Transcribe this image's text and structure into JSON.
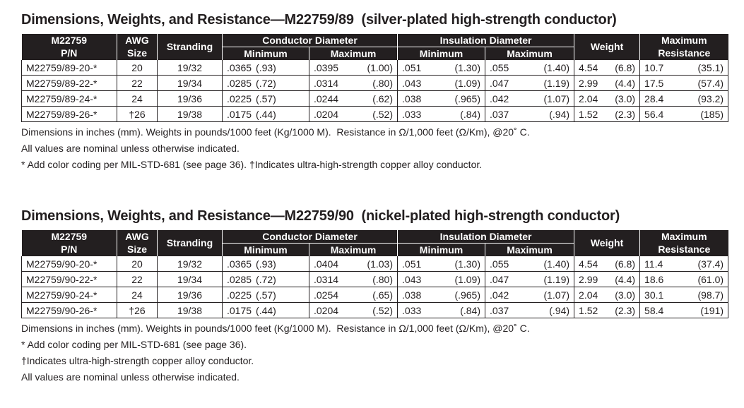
{
  "sections": [
    {
      "title": "Dimensions, Weights, and Resistance—M22759/89  (silver-plated high-strength conductor)",
      "header_top": [
        "M22759",
        "AWG",
        "Stranding",
        "Conductor Diameter",
        "Insulation Diameter",
        "Weight",
        "Maximum"
      ],
      "header_bottom": [
        "P/N",
        "Size",
        "Minimum",
        "Maximum",
        "Minimum",
        "Maximum",
        "Resistance"
      ],
      "rows": [
        [
          "M22759/89-20-*",
          "20",
          "19/32",
          [
            ".0365",
            "(.93)"
          ],
          [
            ".0395",
            "(1.00)"
          ],
          [
            ".051",
            "(1.30)"
          ],
          [
            ".055",
            "(1.40)"
          ],
          [
            "4.54",
            "(6.8)"
          ],
          [
            "10.7",
            "(35.1)"
          ]
        ],
        [
          "M22759/89-22-*",
          "22",
          "19/34",
          [
            ".0285",
            "(.72)"
          ],
          [
            ".0314",
            "(.80)"
          ],
          [
            ".043",
            "(1.09)"
          ],
          [
            ".047",
            "(1.19)"
          ],
          [
            "2.99",
            "(4.4)"
          ],
          [
            "17.5",
            "(57.4)"
          ]
        ],
        [
          "M22759/89-24-*",
          "24",
          "19/36",
          [
            ".0225",
            "(.57)"
          ],
          [
            ".0244",
            "(.62)"
          ],
          [
            ".038",
            "(.965)"
          ],
          [
            ".042",
            "(1.07)"
          ],
          [
            "2.04",
            "(3.0)"
          ],
          [
            "28.4",
            "(93.2)"
          ]
        ],
        [
          "M22759/89-26-*",
          "†26",
          "19/38",
          [
            ".0175",
            "(.44)"
          ],
          [
            ".0204",
            "(.52)"
          ],
          [
            ".033",
            "(.84)"
          ],
          [
            ".037",
            "(.94)"
          ],
          [
            "1.52",
            "(2.3)"
          ],
          [
            "56.4",
            "(185)"
          ]
        ]
      ],
      "notes": [
        "Dimensions in inches (mm). Weights in pounds/1000 feet (Kg/1000 M).  Resistance in Ω/1,000 feet (Ω/Km), @20˚ C.",
        "All values are nominal unless otherwise indicated.",
        "* Add color coding per MIL-STD-681 (see page 36). †Indicates ultra-high-strength copper alloy conductor."
      ]
    },
    {
      "title": "Dimensions, Weights, and Resistance—M22759/90  (nickel-plated high-strength conductor)",
      "header_top": [
        "M22759",
        "AWG",
        "Stranding",
        "Conductor Diameter",
        "Insulation Diameter",
        "Weight",
        "Maximum"
      ],
      "header_bottom": [
        "P/N",
        "Size",
        "Minimum",
        "Maximum",
        "Minimum",
        "Maximum",
        "Resistance"
      ],
      "rows": [
        [
          "M22759/90-20-*",
          "20",
          "19/32",
          [
            ".0365",
            "(.93)"
          ],
          [
            ".0404",
            "(1.03)"
          ],
          [
            ".051",
            "(1.30)"
          ],
          [
            ".055",
            "(1.40)"
          ],
          [
            "4.54",
            "(6.8)"
          ],
          [
            "11.4",
            "(37.4)"
          ]
        ],
        [
          "M22759/90-22-*",
          "22",
          "19/34",
          [
            ".0285",
            "(.72)"
          ],
          [
            ".0314",
            "(.80)"
          ],
          [
            ".043",
            "(1.09)"
          ],
          [
            ".047",
            "(1.19)"
          ],
          [
            "2.99",
            "(4.4)"
          ],
          [
            "18.6",
            "(61.0)"
          ]
        ],
        [
          "M22759/90-24-*",
          "24",
          "19/36",
          [
            ".0225",
            "(.57)"
          ],
          [
            ".0254",
            "(.65)"
          ],
          [
            ".038",
            "(.965)"
          ],
          [
            ".042",
            "(1.07)"
          ],
          [
            "2.04",
            "(3.0)"
          ],
          [
            "30.1",
            "(98.7)"
          ]
        ],
        [
          "M22759/90-26-*",
          "†26",
          "19/38",
          [
            ".0175",
            "(.44)"
          ],
          [
            ".0204",
            "(.52)"
          ],
          [
            ".033",
            "(.84)"
          ],
          [
            ".037",
            "(.94)"
          ],
          [
            "1.52",
            "(2.3)"
          ],
          [
            "58.4",
            "(191)"
          ]
        ]
      ],
      "notes": [
        "Dimensions in inches (mm). Weights in pounds/1000 feet (Kg/1000 M).  Resistance in Ω/1,000 feet (Ω/Km), @20˚ C.",
        "* Add color coding per MIL-STD-681 (see page 36).",
        "†Indicates ultra-high-strength copper alloy conductor.",
        "All values are nominal unless otherwise indicated."
      ]
    }
  ]
}
